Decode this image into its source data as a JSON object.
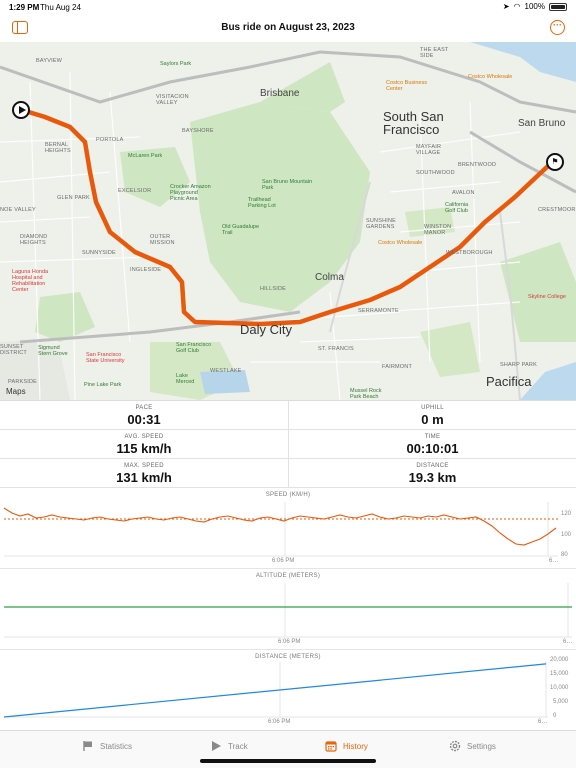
{
  "status_bar": {
    "time": "1:29 PM",
    "date": "Thu Aug 24",
    "battery": "100%"
  },
  "nav": {
    "title": "Bus ride on August 23, 2023",
    "sidebar_icon": "sidebar-icon",
    "more_icon": "ellipsis-circle-icon"
  },
  "map": {
    "attribution": "Maps",
    "labels": {
      "bayview": "BAYVIEW",
      "visitacion_valley": "VISITACION\nVALLEY",
      "brisbane": "Brisbane",
      "east_side": "THE EAST\nSIDE",
      "south_sf": "South San\nFrancisco",
      "san_bruno": "San Bruno",
      "bernal": "BERNAL\nHEIGHTS",
      "portola": "PORTOLA",
      "bayshore": "BAYSHORE",
      "mayfair": "MAYFAIR\nVILLAGE",
      "excelsior": "EXCELSIOR",
      "southwood": "SOUTHWOOD",
      "glen_park": "GLEN PARK",
      "crocker": "Crocker Amazon\nPlayground\nPicnic Area",
      "san_bruno_mtn": "San Bruno Mountain\nPark",
      "trailhead": "Trailhead\nParking Lot",
      "noe_valley": "NOE VALLEY",
      "diamond_heights": "DIAMOND\nHEIGHTS",
      "old_guadalupe": "Old Guadalupe\nTrail",
      "sunnyside": "SUNNYSIDE",
      "outer_mission": "OUTER\nMISSION",
      "ingleside": "INGLESIDE",
      "sunshine_gardens": "SUNSHINE\nGARDENS",
      "winston_manor": "WINSTON\nMANOR",
      "westborough": "WESTBOROUGH",
      "colma": "Colma",
      "hillside": "HILLSIDE",
      "laguna_honda": "Laguna Honda\nHospital and\nRehabilitation\nCenter",
      "serramonte": "SERRAMONTE",
      "daly_city": "Daly City",
      "st_francis": "ST. FRANCIS",
      "sunset": "SUNSET\nDISTRICT",
      "sigmund_stern": "Sigmund\nStern Grove",
      "sfsu": "San Francisco\nState University",
      "sf_golf": "San Francisco\nGolf Club",
      "lake_merced": "Lake\nMerced",
      "westlake": "WESTLAKE",
      "pine_lake": "Pine Lake Park",
      "parkside": "PARKSIDE",
      "fairmont": "FAIRMONT",
      "mussel_rock": "Mussel Rock\nPark Beach",
      "sharp_park": "SHARP PARK",
      "pacifica": "Pacifica",
      "skyline_college": "Skyline College",
      "costco_biz": "Costco Business\nCenter",
      "costco_whole": "Costco Wholesale",
      "costco_whole2": "Costco Wholesale",
      "california_golf": "California\nGolf Club",
      "mclaren": "McLaren Park",
      "saylors": "Saylors Park",
      "avalon": "AVALON",
      "crestmoor": "CRESTMOOR",
      "brentwood": "BRENTWOOD"
    }
  },
  "stats": {
    "pace": {
      "label": "PACE",
      "value": "00:31"
    },
    "uphill": {
      "label": "UPHILL",
      "value": "0 m"
    },
    "avg_speed": {
      "label": "AVG. SPEED",
      "value": "115 km/h"
    },
    "time": {
      "label": "TIME",
      "value": "00:10:01"
    },
    "max_speed": {
      "label": "MAX. SPEED",
      "value": "131 km/h"
    },
    "distance": {
      "label": "DISTANCE",
      "value": "19.3 km"
    }
  },
  "charts": {
    "speed": {
      "title": "SPEED (KM/H)",
      "y_ticks": [
        "120",
        "100",
        "80"
      ],
      "x_tick": "6:06 PM",
      "x_tick_end": "6…",
      "line_color": "#e8590c"
    },
    "altitude": {
      "title": "ALTITUDE (METERS)",
      "x_tick": "6:06 PM",
      "x_tick_end": "6…",
      "line_color": "#2ea043"
    },
    "distance": {
      "title": "DISTANCE (METERS)",
      "y_ticks": [
        "20,000",
        "15,000",
        "10,000",
        "5,000",
        "0"
      ],
      "x_tick": "6:06 PM",
      "x_tick_end": "6…",
      "line_color": "#1e88e5"
    }
  },
  "chart_data": [
    {
      "type": "line",
      "title": "SPEED (KM/H)",
      "ylim": [
        78,
        132
      ],
      "reference_line": 115,
      "series": [
        {
          "values": [
            126,
            121,
            118,
            120,
            116,
            117,
            119,
            117,
            116,
            115,
            114,
            116,
            117,
            115,
            114,
            113,
            115,
            116,
            117,
            115,
            114,
            116,
            117,
            115,
            113,
            112,
            115,
            117,
            118,
            116,
            114,
            113,
            116,
            117,
            115,
            113,
            116,
            118,
            117,
            116,
            115,
            117,
            119,
            117,
            116,
            118,
            120,
            117,
            115,
            116,
            118,
            117,
            116,
            118,
            117,
            119,
            117,
            115,
            116,
            117,
            113,
            108,
            101,
            95,
            90,
            89,
            92,
            95,
            100,
            106
          ]
        }
      ]
    },
    {
      "type": "line",
      "title": "ALTITUDE (METERS)",
      "series": [
        {
          "values": [
            0,
            0
          ]
        }
      ]
    },
    {
      "type": "line",
      "title": "DISTANCE (METERS)",
      "ylim": [
        0,
        20000
      ],
      "series": [
        {
          "values": [
            0,
            19300
          ]
        }
      ]
    }
  ],
  "tabs": [
    {
      "label": "Statistics",
      "icon": "flag-icon",
      "active": false
    },
    {
      "label": "Track",
      "icon": "play-icon",
      "active": false
    },
    {
      "label": "History",
      "icon": "calendar-icon",
      "active": true
    },
    {
      "label": "Settings",
      "icon": "gear-icon",
      "active": false
    }
  ]
}
